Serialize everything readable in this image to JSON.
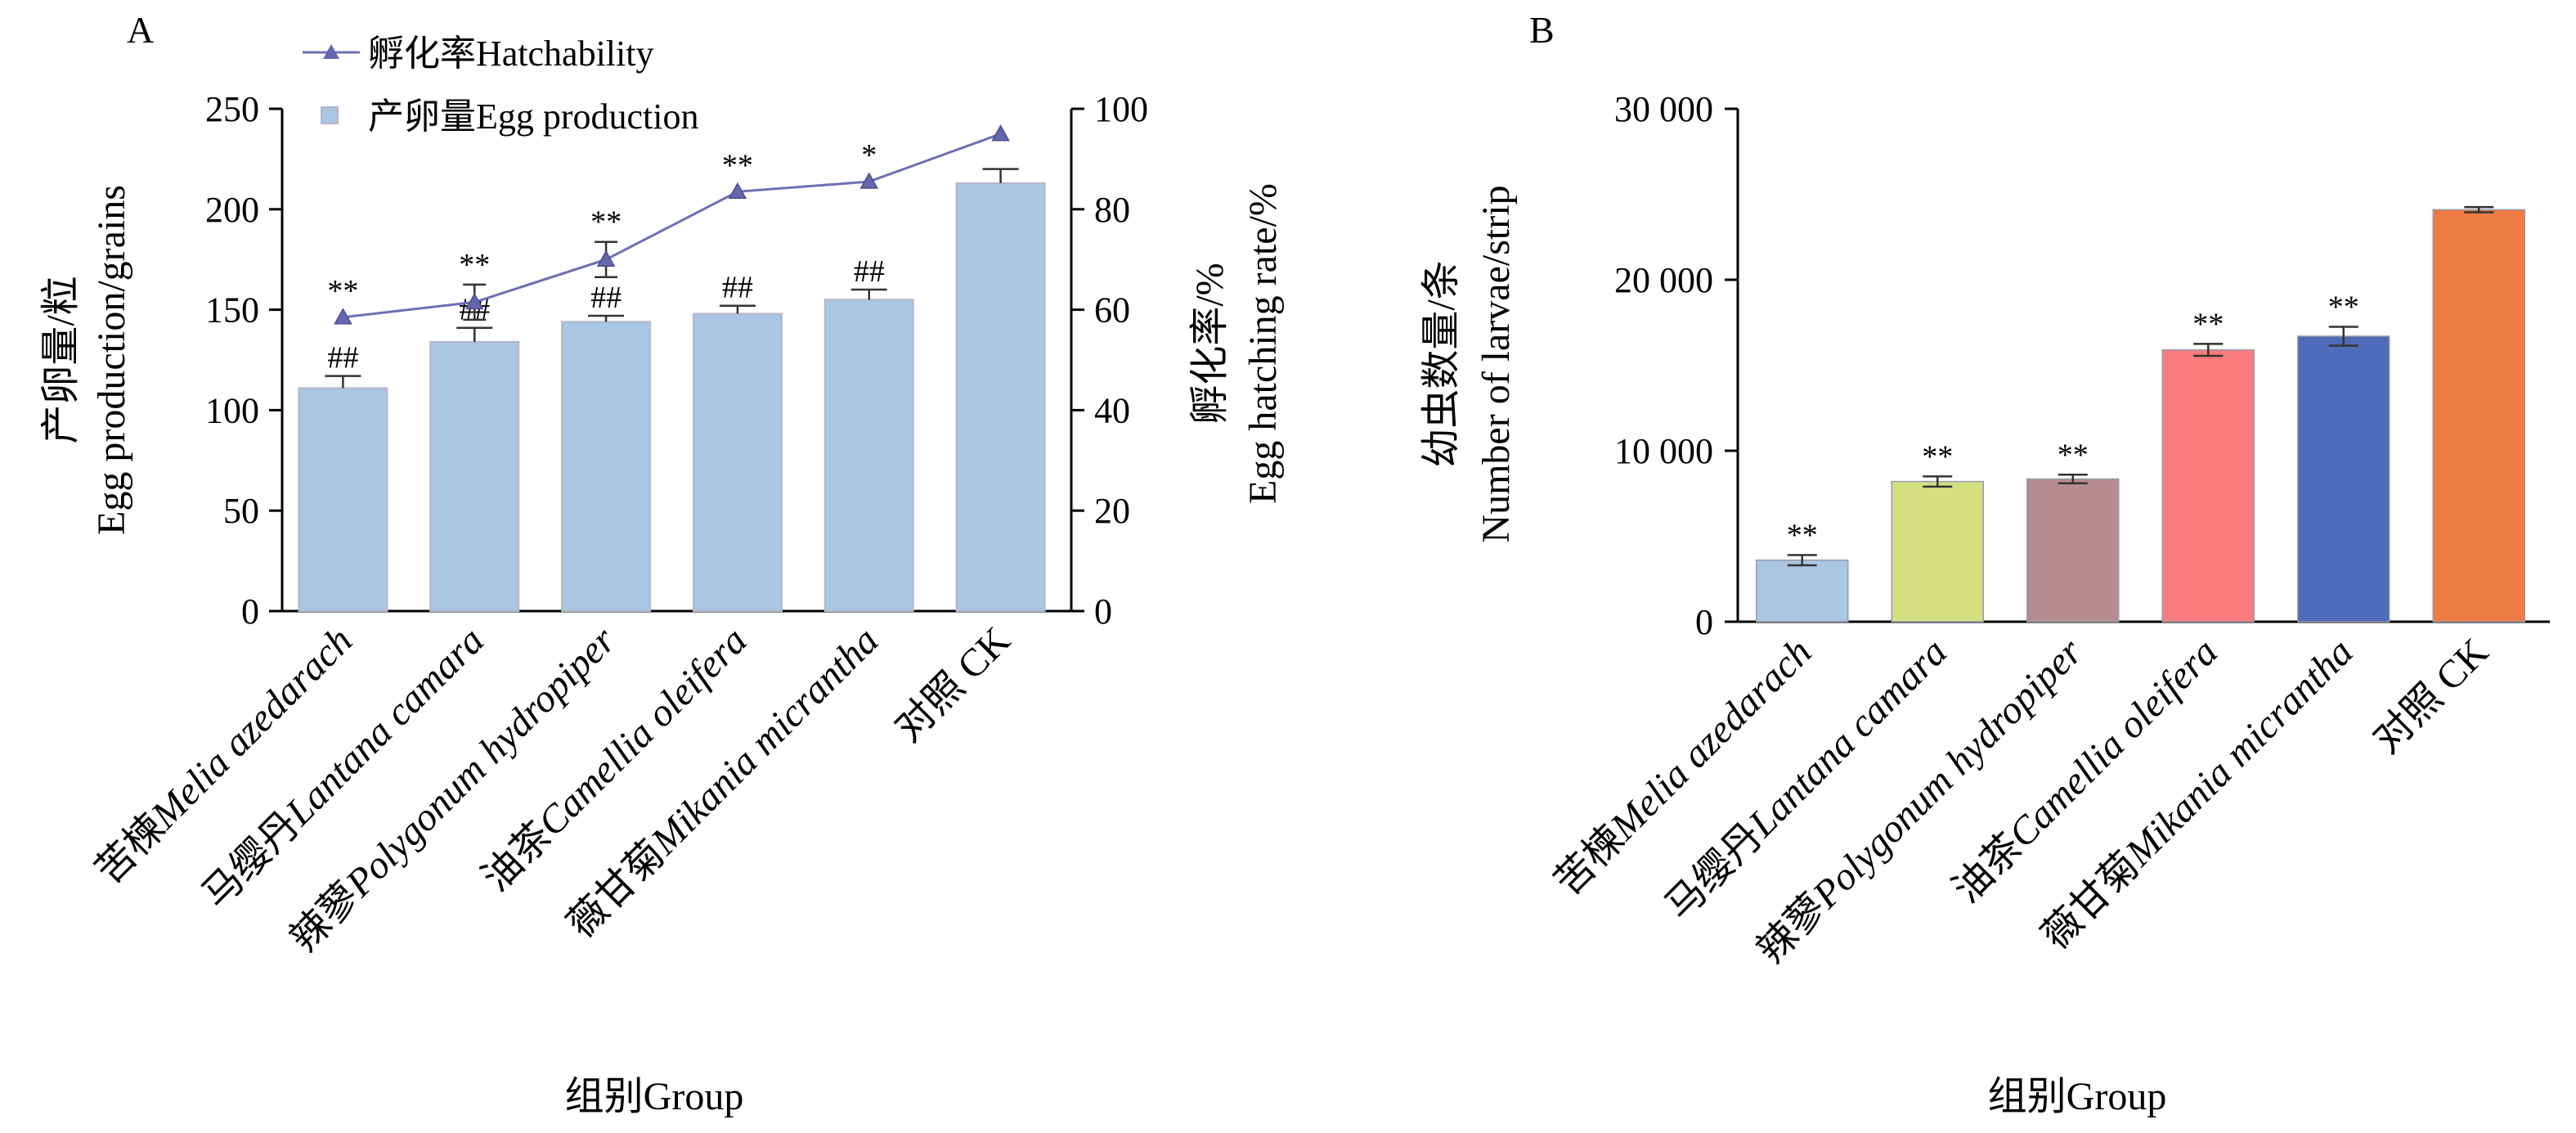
{
  "chart_data": [
    {
      "panel": "A",
      "type": "bar",
      "categories": [
        {
          "zh": "苦楝",
          "latin": "Melia azedarach"
        },
        {
          "zh": "马缨丹",
          "latin": "Lantana camara"
        },
        {
          "zh": "辣蓼",
          "latin": "Polygonum hydropiper"
        },
        {
          "zh": "油茶",
          "latin": "Camellia oleifera"
        },
        {
          "zh": "薇甘菊",
          "latin": "Mikania micrantha"
        },
        {
          "zh": "对照 CK",
          "latin": ""
        }
      ],
      "xlabel": "组别Group",
      "ylabel_zh": "产卵量/粒",
      "ylabel_en": "Egg production/grains",
      "ylim": [
        0,
        250
      ],
      "yticks": [
        0,
        50,
        100,
        150,
        200,
        250
      ],
      "y2label_zh": "孵化率/%",
      "y2label_en": "Egg hatching rate/%",
      "y2lim": [
        0,
        100
      ],
      "y2ticks": [
        0,
        20,
        40,
        60,
        80,
        100
      ],
      "legend": {
        "position": "top-left",
        "entries": [
          "孵化率Hatchability",
          "产卵量Egg production"
        ]
      },
      "series": [
        {
          "name": "产卵量Egg production",
          "type": "bar",
          "axis": "left",
          "color": "#a9c6e3",
          "values": [
            111,
            134,
            144,
            148,
            155,
            213
          ],
          "errors": [
            6,
            7,
            3,
            4,
            5,
            7
          ],
          "sig_labels": [
            "##",
            "##",
            "##",
            "##",
            "##",
            ""
          ]
        },
        {
          "name": "孵化率Hatchability",
          "type": "line",
          "axis": "right",
          "color": "#6d6fb4",
          "values": [
            58.5,
            61.5,
            70,
            83.5,
            85.5,
            95
          ],
          "errors": [
            0,
            3.5,
            3.5,
            0,
            0,
            0
          ],
          "sig_labels": [
            "**",
            "**",
            "**",
            "**",
            "*",
            ""
          ]
        }
      ]
    },
    {
      "panel": "B",
      "type": "bar",
      "categories": [
        {
          "zh": "苦楝",
          "latin": "Melia azedarach"
        },
        {
          "zh": "马缨丹",
          "latin": "Lantana camara"
        },
        {
          "zh": "辣蓼",
          "latin": "Polygonum hydropiper"
        },
        {
          "zh": "油茶",
          "latin": "Camellia oleifera"
        },
        {
          "zh": "薇甘菊",
          "latin": "Mikania micrantha"
        },
        {
          "zh": "对照 CK",
          "latin": ""
        }
      ],
      "xlabel": "组别Group",
      "ylabel_zh": "幼虫数量/条",
      "ylabel_en": "Number of larvae/strip",
      "ylim": [
        0,
        30000
      ],
      "yticks": [
        0,
        10000,
        20000,
        30000
      ],
      "ytick_labels": [
        "0",
        "10 000",
        "20 000",
        "30 000"
      ],
      "series": [
        {
          "type": "bar",
          "values": [
            3600,
            8200,
            8350,
            15900,
            16700,
            24100
          ],
          "errors": [
            300,
            300,
            250,
            350,
            550,
            150
          ],
          "colors": [
            "#a9c6e3",
            "#d4df82",
            "#b78b92",
            "#f97b7e",
            "#4e6cb9",
            "#ed7c45"
          ],
          "sig_labels": [
            "**",
            "**",
            "**",
            "**",
            "**",
            ""
          ]
        }
      ]
    }
  ]
}
